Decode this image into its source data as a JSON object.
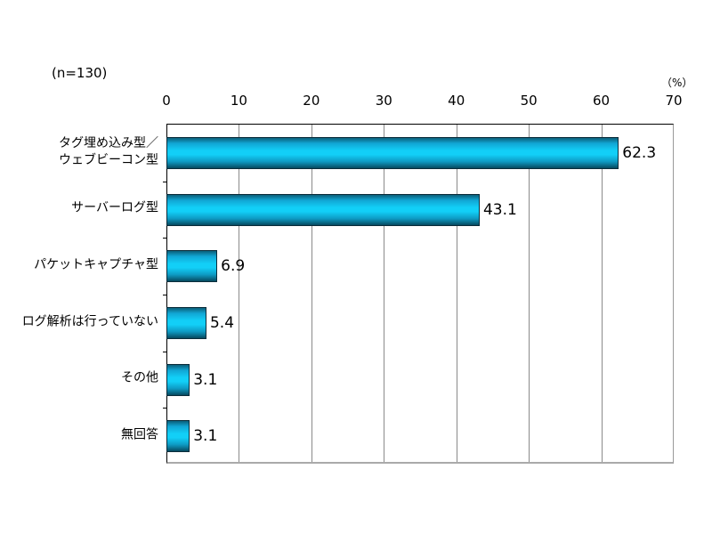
{
  "chart_data": {
    "type": "bar",
    "orientation": "horizontal",
    "title": "",
    "annotation": "(n=130)",
    "xlabel": "",
    "ylabel": "",
    "unit_label": "（%）",
    "xlim": [
      0,
      70
    ],
    "xticks": [
      "0",
      "10",
      "20",
      "30",
      "40",
      "50",
      "60",
      "70"
    ],
    "grid": "vertical",
    "categories": [
      "タグ埋め込み型／\nウェブビーコン型",
      "サーバーログ型",
      "パケットキャプチャ型",
      "ログ解析は行っていない",
      "その他",
      "無回答"
    ],
    "values": [
      62.3,
      43.1,
      6.9,
      5.4,
      3.1,
      3.1
    ],
    "value_labels": [
      "62.3",
      "43.1",
      "6.9",
      "5.4",
      "3.1",
      "3.1"
    ],
    "bar_color": "#12cff7"
  },
  "labels": {
    "n": "(n=130)",
    "unit": "（%）",
    "cat0_line1": "タグ埋め込み型／",
    "cat0_line2": "ウェブビーコン型",
    "cat1": "サーバーログ型",
    "cat2": "パケットキャプチャ型",
    "cat3": "ログ解析は行っていない",
    "cat4": "その他",
    "cat5": "無回答"
  }
}
